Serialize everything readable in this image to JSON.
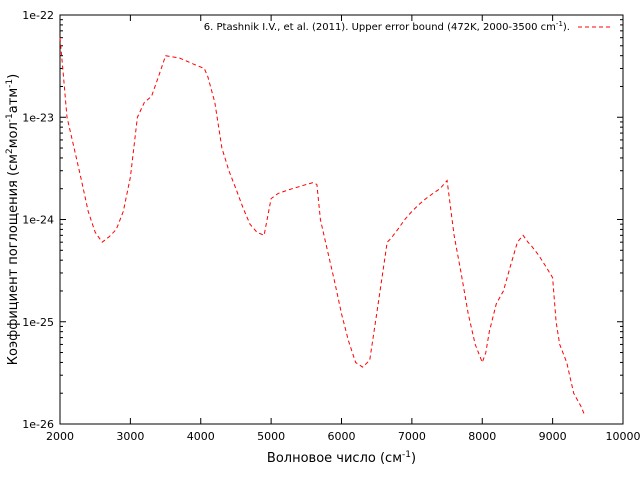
{
  "chart_data": {
    "type": "line",
    "xlabel": "Волновое число (см",
    "xlabel_sup": "-1",
    "xlabel_tail": ")",
    "ylabel_parts": [
      {
        "text": "Коэффициент поглощения (см",
        "sup": false
      },
      {
        "text": "2",
        "sup": true
      },
      {
        "text": "мол",
        "sup": false
      },
      {
        "text": "-1",
        "sup": true
      },
      {
        "text": "атм",
        "sup": false
      },
      {
        "text": "-1",
        "sup": true
      },
      {
        "text": ")",
        "sup": false
      }
    ],
    "xlim": [
      2000,
      10000
    ],
    "ylim": [
      1e-26,
      1e-22
    ],
    "yscale": "log",
    "grid": false,
    "legend_position": "top-right",
    "x_ticks": [
      2000,
      3000,
      4000,
      5000,
      6000,
      7000,
      8000,
      9000,
      10000
    ],
    "x_tick_labels": [
      "2000",
      "3000",
      "4000",
      "5000",
      "6000",
      "7000",
      "8000",
      "9000",
      "10000"
    ],
    "y_ticks": [
      1e-26,
      1e-25,
      1e-24,
      1e-23,
      1e-22
    ],
    "y_tick_labels": [
      "1e-26",
      "1e-25",
      "1e-24",
      "1e-23",
      "1e-22"
    ],
    "series": [
      {
        "name": "6. Ptashnik I.V., et al. (2011). Upper error bound (472K, 2000-3500 cm",
        "name_sup": "-1",
        "name_tail": ").",
        "color": "#ff0000",
        "style": "dashed",
        "x": [
          2000,
          2050,
          2100,
          2200,
          2300,
          2400,
          2500,
          2600,
          2700,
          2800,
          2900,
          3000,
          3100,
          3200,
          3300,
          3400,
          3500,
          3700,
          3900,
          4050,
          4100,
          4200,
          4300,
          4400,
          4500,
          4600,
          4700,
          4800,
          4900,
          5000,
          5100,
          5200,
          5300,
          5400,
          5500,
          5600,
          5650,
          5700,
          5800,
          5900,
          6000,
          6100,
          6200,
          6300,
          6400,
          6500,
          6650,
          6700,
          6800,
          6900,
          7000,
          7100,
          7200,
          7300,
          7400,
          7500,
          7600,
          7700,
          7800,
          7900,
          8000,
          8050,
          8100,
          8200,
          8300,
          8400,
          8500,
          8580,
          8650,
          8700,
          8800,
          8900,
          9000,
          9050,
          9100,
          9200,
          9300,
          9400,
          9460
        ],
        "y": [
          6e-23,
          2.5e-23,
          1e-23,
          5e-24,
          2.5e-24,
          1.2e-24,
          7.5e-25,
          6e-25,
          6.8e-25,
          8e-25,
          1.2e-24,
          2.6e-24,
          1e-23,
          1.4e-23,
          1.6e-23,
          2.5e-23,
          4e-23,
          3.8e-23,
          3.3e-23,
          3e-23,
          2.5e-23,
          1.4e-23,
          5e-24,
          3e-24,
          2e-24,
          1.3e-24,
          9e-25,
          7.5e-25,
          7e-25,
          1.6e-24,
          1.8e-24,
          1.9e-24,
          2e-24,
          2.1e-24,
          2.2e-24,
          2.3e-24,
          2.2e-24,
          1e-24,
          5e-25,
          2.5e-25,
          1.2e-25,
          6.5e-26,
          4e-26,
          3.6e-26,
          4.2e-26,
          1.2e-25,
          6e-25,
          6.5e-25,
          8e-25,
          1e-24,
          1.2e-24,
          1.4e-24,
          1.6e-24,
          1.8e-24,
          2e-24,
          2.4e-24,
          7e-25,
          3e-25,
          1.2e-25,
          6e-26,
          4e-26,
          5e-26,
          8e-26,
          1.5e-25,
          2e-25,
          3.5e-25,
          6e-25,
          7e-25,
          6e-25,
          5.5e-25,
          4.5e-25,
          3.5e-25,
          2.7e-25,
          1e-25,
          6e-26,
          4e-26,
          2e-26,
          1.5e-26,
          1.2e-26
        ]
      }
    ]
  }
}
